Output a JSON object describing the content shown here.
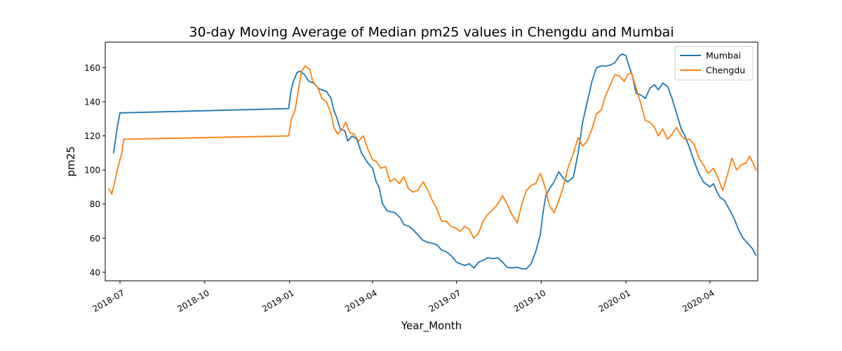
{
  "chart_data": {
    "type": "line",
    "title": "30-day Moving Average of Median pm25 values in Chengdu and Mumbai",
    "xlabel": "Year_Month",
    "ylabel": "pm25",
    "x_axis_type": "date",
    "xlim": [
      "2018-06-15",
      "2020-05-23"
    ],
    "ylim": [
      35,
      175
    ],
    "x_ticks": [
      "2018-07",
      "2018-10",
      "2019-01",
      "2019-04",
      "2019-07",
      "2019-10",
      "2020-01",
      "2020-04"
    ],
    "y_ticks": [
      40,
      60,
      80,
      100,
      120,
      140,
      160
    ],
    "grid": false,
    "legend_position": "top-right",
    "series": [
      {
        "name": "Mumbai",
        "color": "#1f77b4",
        "points": [
          [
            "2018-06-24",
            110
          ],
          [
            "2018-06-28",
            125
          ],
          [
            "2018-07-01",
            133.5
          ],
          [
            "2018-12-31",
            136
          ],
          [
            "2019-01-02",
            145
          ],
          [
            "2019-01-05",
            152
          ],
          [
            "2019-01-09",
            157
          ],
          [
            "2019-01-12",
            158
          ],
          [
            "2019-01-17",
            156
          ],
          [
            "2019-01-22",
            152
          ],
          [
            "2019-01-27",
            151
          ],
          [
            "2019-02-01",
            148
          ],
          [
            "2019-02-05",
            147
          ],
          [
            "2019-02-10",
            146
          ],
          [
            "2019-02-15",
            142
          ],
          [
            "2019-02-18",
            135
          ],
          [
            "2019-02-21",
            131
          ],
          [
            "2019-02-25",
            124
          ],
          [
            "2019-03-02",
            123
          ],
          [
            "2019-03-05",
            117
          ],
          [
            "2019-03-10",
            120
          ],
          [
            "2019-03-15",
            118
          ],
          [
            "2019-03-20",
            110
          ],
          [
            "2019-03-27",
            104
          ],
          [
            "2019-04-01",
            101
          ],
          [
            "2019-04-05",
            93
          ],
          [
            "2019-04-08",
            90
          ],
          [
            "2019-04-12",
            80
          ],
          [
            "2019-04-17",
            76
          ],
          [
            "2019-04-25",
            75
          ],
          [
            "2019-05-01",
            72
          ],
          [
            "2019-05-05",
            68
          ],
          [
            "2019-05-10",
            67
          ],
          [
            "2019-05-15",
            65
          ],
          [
            "2019-05-20",
            62
          ],
          [
            "2019-05-25",
            59
          ],
          [
            "2019-05-31",
            57.5
          ],
          [
            "2019-06-05",
            57
          ],
          [
            "2019-06-10",
            56
          ],
          [
            "2019-06-15",
            53
          ],
          [
            "2019-06-20",
            52
          ],
          [
            "2019-06-25",
            50
          ],
          [
            "2019-07-01",
            46
          ],
          [
            "2019-07-05",
            45
          ],
          [
            "2019-07-10",
            44
          ],
          [
            "2019-07-15",
            45
          ],
          [
            "2019-07-20",
            42.5
          ],
          [
            "2019-07-25",
            46
          ],
          [
            "2019-07-30",
            47
          ],
          [
            "2019-08-04",
            48.5
          ],
          [
            "2019-08-10",
            48
          ],
          [
            "2019-08-15",
            48.5
          ],
          [
            "2019-08-20",
            46
          ],
          [
            "2019-08-25",
            43
          ],
          [
            "2019-08-30",
            42.5
          ],
          [
            "2019-09-05",
            43
          ],
          [
            "2019-09-10",
            42
          ],
          [
            "2019-09-15",
            42
          ],
          [
            "2019-09-20",
            45
          ],
          [
            "2019-09-25",
            52
          ],
          [
            "2019-09-30",
            62
          ],
          [
            "2019-10-03",
            75
          ],
          [
            "2019-10-06",
            85
          ],
          [
            "2019-10-10",
            89
          ],
          [
            "2019-10-15",
            93
          ],
          [
            "2019-10-20",
            99
          ],
          [
            "2019-10-25",
            95
          ],
          [
            "2019-10-30",
            93
          ],
          [
            "2019-11-05",
            96
          ],
          [
            "2019-11-10",
            110
          ],
          [
            "2019-11-15",
            128
          ],
          [
            "2019-11-20",
            140
          ],
          [
            "2019-11-25",
            152
          ],
          [
            "2019-11-30",
            160
          ],
          [
            "2019-12-05",
            161
          ],
          [
            "2019-12-10",
            161
          ],
          [
            "2019-12-15",
            161.5
          ],
          [
            "2019-12-20",
            163
          ],
          [
            "2019-12-25",
            167
          ],
          [
            "2019-12-28",
            168
          ],
          [
            "2020-01-01",
            167
          ],
          [
            "2020-01-03",
            163
          ],
          [
            "2020-01-08",
            155
          ],
          [
            "2020-01-12",
            145
          ],
          [
            "2020-01-17",
            144
          ],
          [
            "2020-01-22",
            142
          ],
          [
            "2020-01-27",
            148
          ],
          [
            "2020-02-01",
            150
          ],
          [
            "2020-02-05",
            147
          ],
          [
            "2020-02-10",
            151
          ],
          [
            "2020-02-15",
            149
          ],
          [
            "2020-02-20",
            142
          ],
          [
            "2020-02-25",
            133
          ],
          [
            "2020-03-01",
            124
          ],
          [
            "2020-03-05",
            120
          ],
          [
            "2020-03-10",
            113
          ],
          [
            "2020-03-15",
            105
          ],
          [
            "2020-03-20",
            98
          ],
          [
            "2020-03-25",
            93
          ],
          [
            "2020-04-01",
            90
          ],
          [
            "2020-04-05",
            92
          ],
          [
            "2020-04-08",
            88
          ],
          [
            "2020-04-12",
            84
          ],
          [
            "2020-04-17",
            82
          ],
          [
            "2020-04-22",
            77
          ],
          [
            "2020-04-27",
            72
          ],
          [
            "2020-05-02",
            65
          ],
          [
            "2020-05-07",
            60
          ],
          [
            "2020-05-12",
            57
          ],
          [
            "2020-05-17",
            54
          ],
          [
            "2020-05-21",
            50
          ]
        ]
      },
      {
        "name": "Chengdu",
        "color": "#ff7f0e",
        "points": [
          [
            "2018-06-19",
            89
          ],
          [
            "2018-06-22",
            86
          ],
          [
            "2018-06-25",
            92
          ],
          [
            "2018-06-28",
            100
          ],
          [
            "2018-07-03",
            110
          ],
          [
            "2018-07-05",
            118
          ],
          [
            "2018-12-31",
            120
          ],
          [
            "2019-01-03",
            130
          ],
          [
            "2019-01-07",
            135
          ],
          [
            "2019-01-10",
            145
          ],
          [
            "2019-01-14",
            158
          ],
          [
            "2019-01-18",
            161
          ],
          [
            "2019-01-23",
            159
          ],
          [
            "2019-01-26",
            152
          ],
          [
            "2019-02-01",
            148
          ],
          [
            "2019-02-05",
            142
          ],
          [
            "2019-02-10",
            140
          ],
          [
            "2019-02-15",
            133
          ],
          [
            "2019-02-18",
            125
          ],
          [
            "2019-02-22",
            121
          ],
          [
            "2019-02-27",
            124
          ],
          [
            "2019-03-03",
            128
          ],
          [
            "2019-03-07",
            122
          ],
          [
            "2019-03-12",
            121
          ],
          [
            "2019-03-17",
            117
          ],
          [
            "2019-03-22",
            120
          ],
          [
            "2019-03-27",
            112
          ],
          [
            "2019-04-01",
            106
          ],
          [
            "2019-04-05",
            105
          ],
          [
            "2019-04-10",
            101
          ],
          [
            "2019-04-15",
            102
          ],
          [
            "2019-04-20",
            93
          ],
          [
            "2019-04-25",
            95
          ],
          [
            "2019-04-30",
            92
          ],
          [
            "2019-05-05",
            96
          ],
          [
            "2019-05-10",
            89
          ],
          [
            "2019-05-15",
            87
          ],
          [
            "2019-05-20",
            88
          ],
          [
            "2019-05-26",
            93
          ],
          [
            "2019-05-31",
            88
          ],
          [
            "2019-06-05",
            82
          ],
          [
            "2019-06-10",
            77
          ],
          [
            "2019-06-15",
            70
          ],
          [
            "2019-06-20",
            70
          ],
          [
            "2019-06-25",
            67
          ],
          [
            "2019-06-30",
            66
          ],
          [
            "2019-07-05",
            64
          ],
          [
            "2019-07-10",
            67
          ],
          [
            "2019-07-15",
            65
          ],
          [
            "2019-07-20",
            60
          ],
          [
            "2019-07-25",
            63
          ],
          [
            "2019-07-30",
            70
          ],
          [
            "2019-08-04",
            74
          ],
          [
            "2019-08-10",
            77
          ],
          [
            "2019-08-15",
            80
          ],
          [
            "2019-08-20",
            85
          ],
          [
            "2019-08-25",
            80
          ],
          [
            "2019-08-30",
            74
          ],
          [
            "2019-09-05",
            69
          ],
          [
            "2019-09-10",
            80
          ],
          [
            "2019-09-15",
            88
          ],
          [
            "2019-09-20",
            91
          ],
          [
            "2019-09-25",
            92
          ],
          [
            "2019-09-30",
            98
          ],
          [
            "2019-10-03",
            94
          ],
          [
            "2019-10-06",
            88
          ],
          [
            "2019-10-10",
            79
          ],
          [
            "2019-10-15",
            75
          ],
          [
            "2019-10-20",
            82
          ],
          [
            "2019-10-25",
            90
          ],
          [
            "2019-10-30",
            101
          ],
          [
            "2019-11-05",
            110
          ],
          [
            "2019-11-10",
            119
          ],
          [
            "2019-11-15",
            114
          ],
          [
            "2019-11-20",
            117
          ],
          [
            "2019-11-25",
            124
          ],
          [
            "2019-11-30",
            133
          ],
          [
            "2019-12-05",
            135
          ],
          [
            "2019-12-10",
            144
          ],
          [
            "2019-12-15",
            150
          ],
          [
            "2019-12-20",
            156
          ],
          [
            "2019-12-25",
            155
          ],
          [
            "2019-12-30",
            152
          ],
          [
            "2020-01-03",
            156
          ],
          [
            "2020-01-07",
            157
          ],
          [
            "2020-01-12",
            148
          ],
          [
            "2020-01-17",
            139
          ],
          [
            "2020-01-22",
            129
          ],
          [
            "2020-01-27",
            128
          ],
          [
            "2020-02-01",
            125
          ],
          [
            "2020-02-05",
            120
          ],
          [
            "2020-02-10",
            124
          ],
          [
            "2020-02-15",
            118
          ],
          [
            "2020-02-20",
            121
          ],
          [
            "2020-02-25",
            125
          ],
          [
            "2020-03-01",
            120
          ],
          [
            "2020-03-05",
            118
          ],
          [
            "2020-03-10",
            118
          ],
          [
            "2020-03-15",
            115
          ],
          [
            "2020-03-20",
            107
          ],
          [
            "2020-03-25",
            103
          ],
          [
            "2020-03-30",
            98
          ],
          [
            "2020-04-05",
            101
          ],
          [
            "2020-04-10",
            95
          ],
          [
            "2020-04-15",
            88
          ],
          [
            "2020-04-20",
            97
          ],
          [
            "2020-04-25",
            107
          ],
          [
            "2020-04-30",
            100
          ],
          [
            "2020-05-05",
            103
          ],
          [
            "2020-05-10",
            104
          ],
          [
            "2020-05-14",
            108
          ],
          [
            "2020-05-18",
            104
          ],
          [
            "2020-05-21",
            100
          ]
        ]
      }
    ]
  }
}
